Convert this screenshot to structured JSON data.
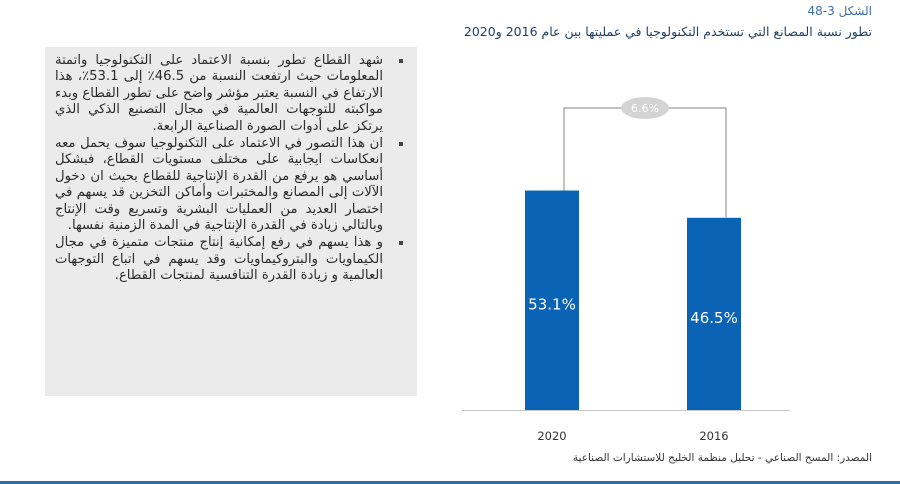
{
  "figure": {
    "label": "الشكل 3-48",
    "title": "تطور نسبة المصانع التي تستخدم التكنولوجيا في عمليتها بين عام 2016 و2020"
  },
  "bullets": [
    "شهد القطاع تطور بنسبة الاعتماد على التكنولوجيا واتمتة المعلومات حيث ارتفعت النسبة من 46.5٪ إلى 53.1٪، هذا الارتفاع في النسبة يعتبر مؤشر واضح على تطور القطاع وبدء مواكبته للتوجهات العالمية في مجال التصنيع الذكي الذي يرتكز على أدوات الصورة الصناعية الرابعة.",
    "ان هذا التصور في الاعتماد على التكنولوجيا سوف يحمل معه انعكاسات ايجابية على مختلف مستويات القطاع، فبشكل أساسي هو يرفع من القدرة الإنتاجية للقطاع بحيث ان دخول الآلات إلى المصانع والمختبرات وأماكن التخزين قد يسهم في اختصار العديد من العمليات البشرية وتسريع وقت الإنتاج وبالتالي زيادة في القدرة الإنتاجية في المدة الزمنية نفسها.",
    "و هذا يسهم في رفع إمكانية إنتاج منتجات متميزة في مجال الكيماويات والبتروكيماويات وقد يسهم في اتباع التوجهات العالمية و زيادة القدرة التنافسية لمنتجات القطاع."
  ],
  "source": "المصدر: المسح الصناعي - تحليل منظمة الخليج للاستشارات الصناعية",
  "colors": {
    "bar": "#0b63b6",
    "axis": "#c8c8c8",
    "bracket": "#9a9a9a",
    "bubble": "#d4d4d4"
  },
  "chart_data": {
    "type": "bar",
    "title": "تطور نسبة المصانع التي تستخدم التكنولوجيا في عمليتها بين عام 2016 و2020",
    "categories": [
      "2020",
      "2016"
    ],
    "values": [
      53.1,
      46.5
    ],
    "value_labels": [
      "53.1%",
      "46.5%"
    ],
    "ylim": [
      0,
      75
    ],
    "grid": false,
    "legend": "none",
    "annotation": {
      "text": "6.6%",
      "type": "difference-bracket"
    }
  }
}
